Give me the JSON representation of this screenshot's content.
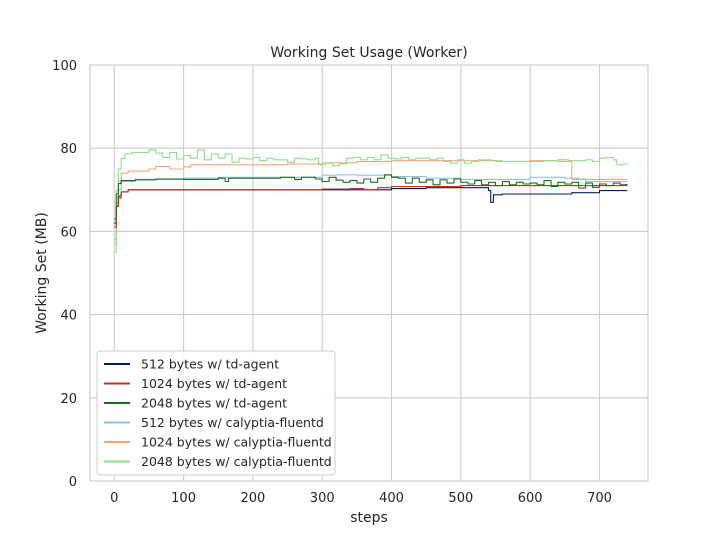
{
  "chart_data": {
    "type": "line",
    "title": "Working Set Usage (Worker)",
    "xlabel": "steps",
    "ylabel": "Working Set (MB)",
    "xlim": [
      -35,
      770
    ],
    "ylim": [
      0,
      100
    ],
    "xticks": [
      0,
      100,
      200,
      300,
      400,
      500,
      600,
      700
    ],
    "yticks": [
      0,
      20,
      40,
      60,
      80,
      100
    ],
    "grid": true,
    "legend_position": "lower-left",
    "series": [
      {
        "name": "512 bytes w/ td-agent",
        "color": "#0b1a5e",
        "points": [
          [
            0,
            62
          ],
          [
            3,
            66
          ],
          [
            6,
            68.5
          ],
          [
            10,
            69.5
          ],
          [
            20,
            70
          ],
          [
            100,
            70
          ],
          [
            200,
            70
          ],
          [
            300,
            70
          ],
          [
            400,
            70.3
          ],
          [
            450,
            70.5
          ],
          [
            500,
            70.5
          ],
          [
            530,
            70.5
          ],
          [
            540,
            69.8
          ],
          [
            543,
            67
          ],
          [
            547,
            68.8
          ],
          [
            560,
            69
          ],
          [
            600,
            69
          ],
          [
            660,
            69.3
          ],
          [
            700,
            69.8
          ],
          [
            740,
            69.8
          ]
        ]
      },
      {
        "name": "1024 bytes w/ td-agent",
        "color": "#b5361c",
        "points": [
          [
            0,
            61
          ],
          [
            3,
            66
          ],
          [
            6,
            68
          ],
          [
            10,
            69.5
          ],
          [
            20,
            70
          ],
          [
            100,
            70
          ],
          [
            200,
            70
          ],
          [
            300,
            70.2
          ],
          [
            340,
            70.3
          ],
          [
            360,
            70
          ],
          [
            380,
            70.5
          ],
          [
            400,
            70.8
          ],
          [
            450,
            70.8
          ],
          [
            500,
            71
          ],
          [
            550,
            71
          ],
          [
            600,
            71
          ],
          [
            650,
            71
          ],
          [
            700,
            71
          ],
          [
            740,
            71
          ]
        ]
      },
      {
        "name": "2048 bytes w/ td-agent",
        "color": "#1e6b1e",
        "points": [
          [
            0,
            63
          ],
          [
            3,
            69
          ],
          [
            6,
            71.5
          ],
          [
            10,
            72.2
          ],
          [
            30,
            72.4
          ],
          [
            60,
            72.6
          ],
          [
            100,
            72.5
          ],
          [
            150,
            72.8
          ],
          [
            160,
            72
          ],
          [
            165,
            72.8
          ],
          [
            200,
            72.8
          ],
          [
            240,
            73
          ],
          [
            260,
            72.5
          ],
          [
            270,
            73
          ],
          [
            290,
            72.6
          ],
          [
            300,
            72
          ],
          [
            310,
            73
          ],
          [
            320,
            72.3
          ],
          [
            330,
            71.8
          ],
          [
            340,
            72.2
          ],
          [
            350,
            71.6
          ],
          [
            360,
            72.6
          ],
          [
            370,
            71.8
          ],
          [
            380,
            72.8
          ],
          [
            390,
            73.6
          ],
          [
            400,
            73
          ],
          [
            410,
            72.8
          ],
          [
            420,
            71.6
          ],
          [
            430,
            72.8
          ],
          [
            440,
            71.8
          ],
          [
            450,
            72.4
          ],
          [
            460,
            71.2
          ],
          [
            470,
            72.4
          ],
          [
            480,
            71.6
          ],
          [
            490,
            72.6
          ],
          [
            500,
            71.8
          ],
          [
            510,
            71.4
          ],
          [
            520,
            72.2
          ],
          [
            530,
            71.2
          ],
          [
            540,
            71.8
          ],
          [
            550,
            71
          ],
          [
            560,
            72
          ],
          [
            570,
            71.2
          ],
          [
            580,
            71.8
          ],
          [
            590,
            71.4
          ],
          [
            600,
            71.6
          ],
          [
            610,
            71.2
          ],
          [
            620,
            72.2
          ],
          [
            630,
            70.8
          ],
          [
            640,
            71.8
          ],
          [
            650,
            71.4
          ],
          [
            660,
            71.8
          ],
          [
            670,
            70.4
          ],
          [
            680,
            71.6
          ],
          [
            690,
            70.6
          ],
          [
            700,
            71.4
          ],
          [
            710,
            71
          ],
          [
            720,
            71.6
          ],
          [
            730,
            71.2
          ],
          [
            740,
            71.4
          ]
        ]
      },
      {
        "name": "512 bytes w/ calyptia-fluentd",
        "color": "#8ec1e4",
        "points": [
          [
            0,
            58
          ],
          [
            3,
            66
          ],
          [
            6,
            70
          ],
          [
            10,
            72
          ],
          [
            30,
            72.5
          ],
          [
            100,
            72.8
          ],
          [
            150,
            73
          ],
          [
            200,
            73
          ],
          [
            250,
            73
          ],
          [
            300,
            73.5
          ],
          [
            320,
            73.6
          ],
          [
            350,
            73.5
          ],
          [
            400,
            73.2
          ],
          [
            450,
            72.8
          ],
          [
            500,
            72.5
          ],
          [
            550,
            72.5
          ],
          [
            600,
            73
          ],
          [
            650,
            72.8
          ],
          [
            670,
            72.6
          ],
          [
            680,
            72
          ],
          [
            700,
            72
          ],
          [
            740,
            72
          ]
        ]
      },
      {
        "name": "1024 bytes w/ calyptia-fluentd",
        "color": "#f4a57c",
        "points": [
          [
            0,
            57
          ],
          [
            3,
            67
          ],
          [
            6,
            72
          ],
          [
            10,
            74
          ],
          [
            20,
            74.5
          ],
          [
            50,
            75
          ],
          [
            60,
            75.6
          ],
          [
            80,
            75
          ],
          [
            100,
            75.5
          ],
          [
            110,
            76
          ],
          [
            150,
            76
          ],
          [
            200,
            76
          ],
          [
            250,
            76.2
          ],
          [
            300,
            76.5
          ],
          [
            350,
            76.8
          ],
          [
            400,
            77
          ],
          [
            450,
            77
          ],
          [
            500,
            77
          ],
          [
            550,
            76.8
          ],
          [
            600,
            77
          ],
          [
            640,
            77.2
          ],
          [
            655,
            77
          ],
          [
            660,
            72.5
          ],
          [
            665,
            72.5
          ],
          [
            700,
            72.5
          ],
          [
            740,
            72.5
          ]
        ]
      },
      {
        "name": "2048 bytes w/ calyptia-fluentd",
        "color": "#8fdf8f",
        "points": [
          [
            0,
            55
          ],
          [
            3,
            70
          ],
          [
            6,
            75
          ],
          [
            10,
            77.5
          ],
          [
            15,
            78.6
          ],
          [
            25,
            79
          ],
          [
            40,
            79
          ],
          [
            50,
            79.6
          ],
          [
            60,
            78.8
          ],
          [
            70,
            77.8
          ],
          [
            80,
            79
          ],
          [
            90,
            77.4
          ],
          [
            100,
            78.2
          ],
          [
            110,
            77.6
          ],
          [
            120,
            79.6
          ],
          [
            130,
            77.2
          ],
          [
            140,
            78.6
          ],
          [
            150,
            77.6
          ],
          [
            160,
            78.6
          ],
          [
            170,
            76.6
          ],
          [
            180,
            77.6
          ],
          [
            190,
            77.4
          ],
          [
            200,
            77.8
          ],
          [
            210,
            77
          ],
          [
            220,
            77.6
          ],
          [
            230,
            77.2
          ],
          [
            240,
            77.2
          ],
          [
            250,
            76.6
          ],
          [
            260,
            77.6
          ],
          [
            270,
            77.4
          ],
          [
            280,
            77.2
          ],
          [
            290,
            77.6
          ],
          [
            295,
            76
          ],
          [
            305,
            76.4
          ],
          [
            315,
            75.8
          ],
          [
            325,
            76.2
          ],
          [
            335,
            77.6
          ],
          [
            345,
            77.8
          ],
          [
            355,
            77.2
          ],
          [
            365,
            77.8
          ],
          [
            375,
            77.2
          ],
          [
            385,
            78.4
          ],
          [
            395,
            77.6
          ],
          [
            405,
            77.4
          ],
          [
            415,
            77.8
          ],
          [
            425,
            77.2
          ],
          [
            435,
            77.6
          ],
          [
            445,
            77.6
          ],
          [
            455,
            77.2
          ],
          [
            465,
            77.6
          ],
          [
            475,
            76.8
          ],
          [
            485,
            76.4
          ],
          [
            495,
            77.2
          ],
          [
            505,
            76.4
          ],
          [
            515,
            76.8
          ],
          [
            525,
            77.2
          ],
          [
            545,
            77
          ],
          [
            560,
            76.8
          ],
          [
            580,
            76.8
          ],
          [
            600,
            76.8
          ],
          [
            620,
            77
          ],
          [
            640,
            76.8
          ],
          [
            660,
            77
          ],
          [
            680,
            77.2
          ],
          [
            690,
            76.8
          ],
          [
            700,
            77.6
          ],
          [
            710,
            77.8
          ],
          [
            720,
            77.2
          ],
          [
            725,
            76
          ],
          [
            735,
            76.2
          ],
          [
            740,
            76.4
          ]
        ]
      }
    ]
  }
}
